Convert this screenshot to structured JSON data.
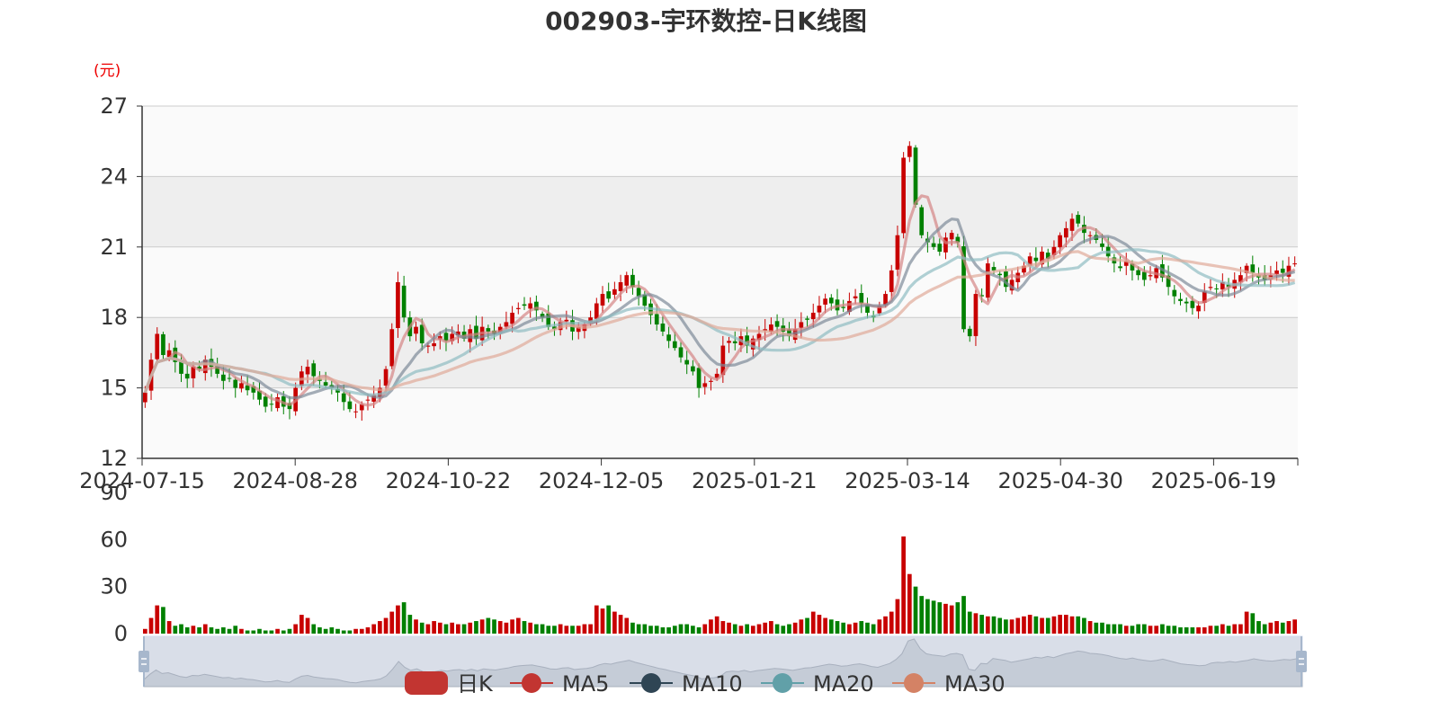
{
  "chart_data": {
    "type": "candlestick",
    "title": "002903-宇环数控-日K线图",
    "price_unit": "(元)",
    "price_axis": {
      "min": 12,
      "max": 27,
      "ticks": [
        "12",
        "15",
        "18",
        "21",
        "24",
        "27"
      ]
    },
    "volume_axis": {
      "min": 0,
      "max": 90,
      "ticks": [
        "0",
        "30",
        "60",
        "90"
      ]
    },
    "date_ticks": [
      "2024-07-15",
      "2024-08-28",
      "2024-10-22",
      "2024-12-05",
      "2025-01-21",
      "2025-03-14",
      "2025-04-30",
      "2025-06-19"
    ],
    "legend": [
      "日K",
      "MA5",
      "MA10",
      "MA20",
      "MA30"
    ],
    "colors": {
      "up": "#c80000",
      "down": "#008000",
      "MA5": "#d48585",
      "MA10": "#7d8a99",
      "MA20": "#8fbcc2",
      "MA30": "#e0aa99",
      "legend_k": "#c23531",
      "legend_ma5": "#c23531",
      "legend_ma10": "#2f4554",
      "legend_ma20": "#61a0a8",
      "legend_ma30": "#d48265",
      "band": "#eeeeee",
      "grid": "#cccccc",
      "slider": "#d9dee8"
    },
    "closes": [
      14.8,
      16.2,
      17.3,
      16.4,
      16.6,
      16.1,
      15.6,
      15.4,
      15.9,
      15.8,
      16.2,
      15.9,
      15.6,
      15.3,
      15.4,
      15.0,
      15.2,
      14.9,
      14.8,
      14.5,
      14.2,
      14.3,
      14.6,
      14.2,
      14.1,
      15.0,
      15.7,
      15.9,
      15.5,
      15.3,
      15.1,
      15.0,
      14.8,
      14.4,
      14.1,
      14.0,
      14.3,
      14.5,
      14.7,
      15.0,
      15.8,
      17.5,
      19.5,
      18.0,
      17.2,
      17.6,
      16.9,
      16.8,
      16.9,
      17.2,
      17.0,
      17.3,
      17.4,
      17.1,
      17.5,
      17.1,
      17.6,
      17.4,
      17.3,
      17.6,
      17.8,
      18.2,
      18.4,
      18.5,
      18.6,
      18.3,
      18.0,
      17.6,
      17.5,
      17.8,
      17.9,
      17.4,
      17.6,
      17.7,
      18.0,
      18.6,
      19.0,
      18.8,
      19.2,
      19.5,
      19.8,
      19.3,
      18.9,
      18.5,
      18.1,
      17.7,
      17.4,
      17.0,
      16.7,
      16.3,
      16.0,
      15.7,
      15.0,
      15.2,
      15.3,
      15.6,
      16.8,
      17.0,
      16.9,
      17.2,
      16.8,
      17.1,
      17.3,
      17.5,
      17.7,
      17.6,
      17.4,
      17.2,
      17.5,
      17.8,
      17.9,
      18.2,
      18.5,
      18.8,
      18.6,
      18.3,
      18.4,
      18.7,
      18.9,
      18.6,
      18.2,
      18.0,
      18.5,
      19.0,
      20.0,
      21.5,
      24.8,
      25.3,
      22.8,
      21.5,
      21.2,
      21.0,
      20.8,
      21.4,
      21.6,
      21.2,
      17.5,
      17.2,
      19.0,
      18.9,
      20.3,
      20.0,
      19.8,
      19.3,
      19.6,
      19.9,
      20.2,
      20.6,
      20.4,
      20.8,
      20.5,
      21.0,
      21.5,
      21.8,
      22.2,
      22.0,
      21.6,
      21.5,
      21.3,
      21.0,
      20.6,
      20.3,
      20.1,
      20.4,
      20.0,
      19.8,
      19.6,
      19.8,
      20.1,
      19.7,
      19.3,
      18.9,
      18.7,
      18.6,
      18.4,
      18.5,
      19.1,
      19.3,
      19.2,
      19.5,
      19.3,
      19.6,
      19.8,
      20.2,
      19.9,
      19.7,
      19.6,
      19.8,
      20.0,
      19.9,
      20.2,
      20.3
    ],
    "volumes": [
      3,
      10,
      18,
      17,
      8,
      5,
      6,
      4,
      5,
      4,
      6,
      4,
      3,
      4,
      3,
      5,
      3,
      2,
      2,
      3,
      2,
      2,
      3,
      2,
      3,
      6,
      12,
      10,
      6,
      4,
      3,
      4,
      3,
      2,
      2,
      3,
      3,
      4,
      6,
      8,
      10,
      14,
      18,
      20,
      12,
      9,
      7,
      6,
      8,
      7,
      6,
      7,
      6,
      6,
      7,
      8,
      9,
      10,
      9,
      8,
      7,
      9,
      10,
      8,
      7,
      6,
      6,
      5,
      5,
      6,
      5,
      5,
      5,
      6,
      6,
      18,
      16,
      18,
      14,
      12,
      10,
      7,
      6,
      6,
      5,
      5,
      4,
      4,
      5,
      6,
      6,
      5,
      4,
      6,
      9,
      11,
      8,
      7,
      6,
      5,
      6,
      5,
      6,
      7,
      8,
      6,
      5,
      6,
      7,
      9,
      10,
      14,
      12,
      10,
      9,
      8,
      7,
      6,
      7,
      8,
      7,
      6,
      9,
      11,
      14,
      22,
      62,
      38,
      30,
      24,
      22,
      21,
      20,
      19,
      18,
      20,
      24,
      14,
      13,
      12,
      11,
      11,
      10,
      9,
      9,
      10,
      11,
      12,
      11,
      10,
      10,
      11,
      12,
      12,
      11,
      11,
      10,
      8,
      7,
      7,
      6,
      6,
      6,
      5,
      5,
      6,
      6,
      5,
      5,
      6,
      5,
      5,
      4,
      4,
      4,
      4,
      4,
      5,
      5,
      6,
      5,
      6,
      6,
      14,
      13,
      8,
      6,
      7,
      8,
      7,
      8,
      9
    ]
  }
}
